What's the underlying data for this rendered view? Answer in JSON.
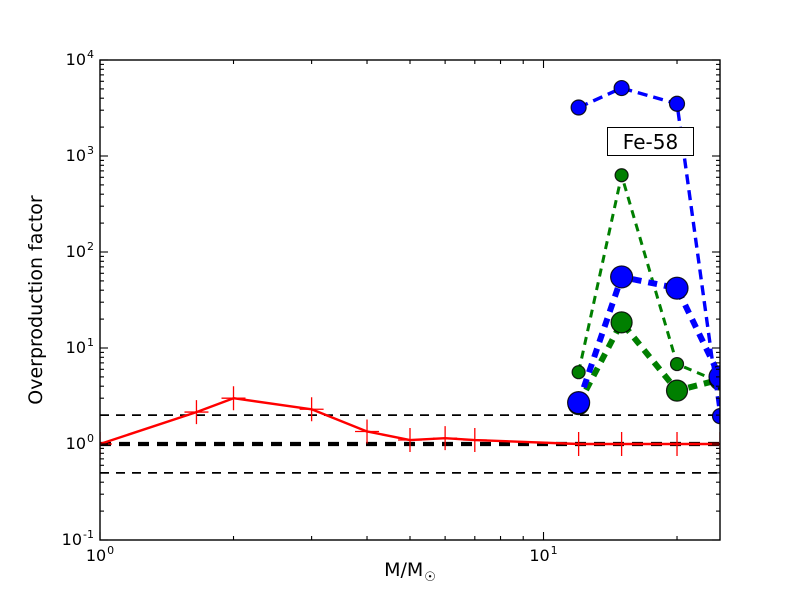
{
  "chart_data": {
    "type": "line",
    "title": "",
    "annotation": "Fe-58",
    "ylabel": "Overproduction factor",
    "xlabel": "M/M☉",
    "xlabel_main": "M/M",
    "xlabel_sub": "☉",
    "x_scale": "log",
    "y_scale": "log",
    "xlim": [
      1,
      25
    ],
    "ylim": [
      0.1,
      10000
    ],
    "x_major_ticks": [
      1,
      10
    ],
    "x_minor_ticks": [
      2,
      3,
      4,
      5,
      6,
      7,
      8,
      9,
      20
    ],
    "y_major_ticks": [
      0.1,
      1,
      10,
      100,
      1000,
      10000
    ],
    "grid": false,
    "legend": "none",
    "frame_color": "#000000",
    "background_color": "#ffffff",
    "reference_lines": [
      {
        "y": 2,
        "color": "#000000",
        "dash": "9,7",
        "width": 1.8
      },
      {
        "y": 1,
        "color": "#000000",
        "dash": "11,8",
        "width": 4.2
      },
      {
        "y": 0.5,
        "color": "#000000",
        "dash": "9,7",
        "width": 1.8
      }
    ],
    "series": [
      {
        "name": "red-solid-plus",
        "color": "#ff0000",
        "line": "solid",
        "dash": "",
        "line_width": 2.4,
        "marker": "plus",
        "marker_size": 12,
        "x": [
          1.0,
          1.65,
          2,
          3,
          4,
          5,
          6,
          7,
          12,
          15,
          20,
          25
        ],
        "y": [
          1.0,
          2.15,
          3.0,
          2.3,
          1.35,
          1.1,
          1.15,
          1.1,
          1.0,
          1.0,
          1.0,
          1.0
        ]
      },
      {
        "name": "green-dashed-large-circles",
        "color": "#007f00",
        "line": "dashed",
        "dash": "9,7",
        "line_width": 6,
        "marker": "circle",
        "marker_size": 10.5,
        "x": [
          12,
          15,
          20,
          25
        ],
        "y": [
          2.6,
          18.5,
          3.6,
          4.7
        ]
      },
      {
        "name": "green-dashed-small-circles",
        "color": "#007f00",
        "line": "dashed",
        "dash": "8,6",
        "line_width": 3,
        "marker": "circle",
        "marker_size": 6.5,
        "x": [
          12,
          15,
          20,
          25
        ],
        "y": [
          5.6,
          630,
          6.8,
          4.4
        ]
      },
      {
        "name": "blue-dashed-large-circles",
        "color": "#0000ff",
        "line": "dashed",
        "dash": "9,7",
        "line_width": 6,
        "marker": "circle",
        "marker_size": 11,
        "x": [
          12,
          15,
          20,
          25
        ],
        "y": [
          2.7,
          55,
          42,
          5.0
        ]
      },
      {
        "name": "blue-dashed-small-circles",
        "color": "#0000ff",
        "line": "dashed",
        "dash": "10,6",
        "line_width": 3.4,
        "marker": "circle",
        "marker_size": 7.5,
        "x": [
          12,
          15,
          20,
          25
        ],
        "y": [
          3200,
          5100,
          3500,
          1.95
        ]
      }
    ]
  }
}
